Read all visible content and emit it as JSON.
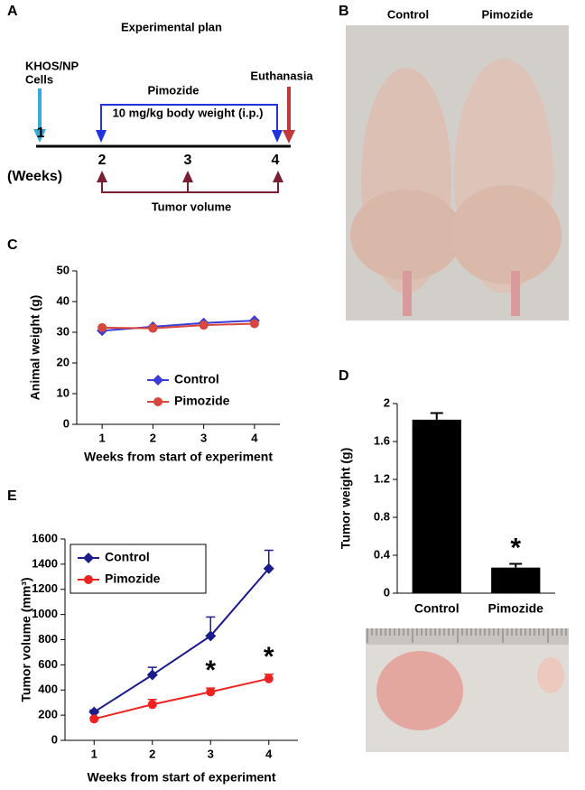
{
  "panel_labels": [
    "A",
    "B",
    "C",
    "D",
    "E"
  ],
  "plan": {
    "title": "Experimental plan",
    "start_line1": "KHOS/NP",
    "start_line2": "Cells",
    "end_label": "Euthanasia",
    "treatment": "Pimozide",
    "dose": "10 mg/kg body weight (i.p.)",
    "weeks": [
      "1",
      "2",
      "3",
      "4"
    ],
    "weeks_unit": "(Weeks)",
    "measure": "Tumor volume"
  },
  "photo": {
    "labels": [
      "Control",
      "Pimozide"
    ]
  },
  "chart_data": [
    {
      "type": "line",
      "ylabel": "Animal weight (g)",
      "xlabel": "Weeks from start of experiment",
      "x": [
        1,
        2,
        3,
        4
      ],
      "xlim": [
        0.5,
        4.5
      ],
      "xticks": [
        1,
        2,
        3,
        4
      ],
      "ylim": [
        0,
        50
      ],
      "yticks": [
        0,
        10,
        20,
        30,
        40,
        50
      ],
      "legend": "lower-right",
      "series": [
        {
          "name": "Control",
          "color": "#3b3bd6",
          "marker": "diamond",
          "values": [
            30.5,
            31.8,
            33,
            33.8
          ]
        },
        {
          "name": "Pimozide",
          "color": "#d8473b",
          "marker": "circle",
          "values": [
            31.5,
            31.3,
            32.3,
            32.8
          ]
        }
      ]
    },
    {
      "type": "bar",
      "ylabel": "Tumor weight (g)",
      "categories": [
        "Control",
        "Pimozide"
      ],
      "values": [
        1.83,
        0.27
      ],
      "errors": [
        0.07,
        0.04
      ],
      "color": "#000000",
      "ylim": [
        0,
        2
      ],
      "yticks": [
        0,
        0.4,
        0.8,
        1.2,
        1.6,
        2
      ],
      "significance": [
        "",
        "*"
      ]
    },
    {
      "type": "line",
      "ylabel": "Tumor volume (mm³)",
      "xlabel": "Weeks from start of experiment",
      "x": [
        1,
        2,
        3,
        4
      ],
      "xlim": [
        0.5,
        4.5
      ],
      "xticks": [
        1,
        2,
        3,
        4
      ],
      "ylim": [
        0,
        1600
      ],
      "yticks": [
        0,
        200,
        400,
        600,
        800,
        1000,
        1200,
        1400,
        1600
      ],
      "legend": "upper-left",
      "legend_box": true,
      "series": [
        {
          "name": "Control",
          "color": "#1c1c8c",
          "marker": "diamond",
          "values": [
            225,
            520,
            830,
            1365
          ],
          "errors": [
            15,
            60,
            150,
            145
          ]
        },
        {
          "name": "Pimozide",
          "color": "#ee2222",
          "marker": "circle",
          "values": [
            170,
            285,
            385,
            490
          ],
          "errors": [
            10,
            40,
            30,
            35
          ],
          "significance": [
            null,
            null,
            "*",
            "*"
          ]
        }
      ]
    }
  ]
}
